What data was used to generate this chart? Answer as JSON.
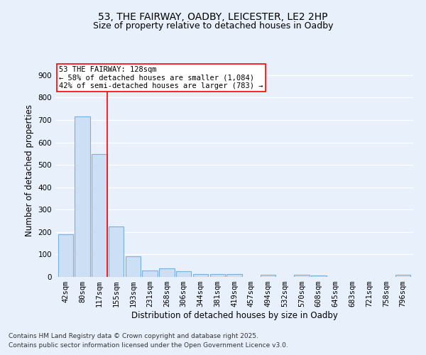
{
  "title1": "53, THE FAIRWAY, OADBY, LEICESTER, LE2 2HP",
  "title2": "Size of property relative to detached houses in Oadby",
  "xlabel": "Distribution of detached houses by size in Oadby",
  "ylabel": "Number of detached properties",
  "bar_color": "#ccdff5",
  "bar_edge_color": "#7ab0dc",
  "background_color": "#e8f0fb",
  "grid_color": "#ffffff",
  "categories": [
    "42sqm",
    "80sqm",
    "117sqm",
    "155sqm",
    "193sqm",
    "231sqm",
    "268sqm",
    "306sqm",
    "344sqm",
    "381sqm",
    "419sqm",
    "457sqm",
    "494sqm",
    "532sqm",
    "570sqm",
    "608sqm",
    "645sqm",
    "683sqm",
    "721sqm",
    "758sqm",
    "796sqm"
  ],
  "values": [
    190,
    715,
    548,
    225,
    92,
    27,
    37,
    24,
    12,
    12,
    12,
    0,
    10,
    0,
    10,
    7,
    0,
    0,
    0,
    0,
    10
  ],
  "ylim": [
    0,
    950
  ],
  "yticks": [
    0,
    100,
    200,
    300,
    400,
    500,
    600,
    700,
    800,
    900
  ],
  "property_line_x": 2.45,
  "annotation_text": "53 THE FAIRWAY: 128sqm\n← 58% of detached houses are smaller (1,084)\n42% of semi-detached houses are larger (783) →",
  "footer1": "Contains HM Land Registry data © Crown copyright and database right 2025.",
  "footer2": "Contains public sector information licensed under the Open Government Licence v3.0.",
  "title_fontsize": 10,
  "subtitle_fontsize": 9,
  "axis_label_fontsize": 8.5,
  "tick_fontsize": 7.5,
  "annotation_fontsize": 7.5,
  "footer_fontsize": 6.5
}
